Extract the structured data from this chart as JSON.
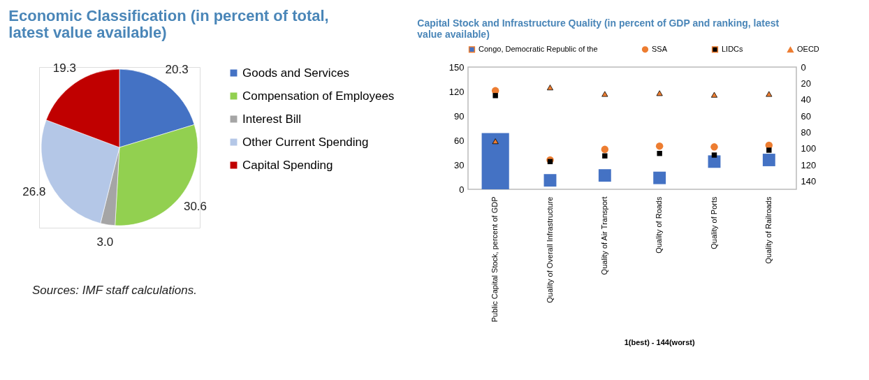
{
  "chart_data": [
    {
      "type": "pie",
      "title": "Economic Classification (in percent of total, latest value available)",
      "categories": [
        "Goods and Services",
        "Compensation of Employees",
        "Interest Bill",
        "Other Current Spending",
        "Capital Spending"
      ],
      "values": [
        20.3,
        30.6,
        3.0,
        26.8,
        19.3
      ],
      "value_labels": [
        "20.3",
        "30.6",
        "3.0",
        "26.8",
        "19.3"
      ],
      "colors": [
        "#4472c4",
        "#92d050",
        "#a5a5a5",
        "#b4c7e7",
        "#c00000"
      ],
      "legend": "right",
      "annotations": [
        "Sources: IMF staff calculations."
      ]
    },
    {
      "type": "bar",
      "title": "Capital Stock and Infrastructure Quality (in percent of GDP and ranking, latest value available)",
      "categories": [
        "Public Capital Stock, percent of GDP",
        "Quality of Overall Infrastructure",
        "Quality of Air Transport",
        "Quality of Roads",
        "Quality of Ports",
        "Quality of Railroads"
      ],
      "series": [
        {
          "name": "Congo, Democratic Republic of the",
          "type": "bar",
          "color": "#4472c4",
          "values": [
            69,
            null,
            null,
            null,
            null,
            null
          ]
        },
        {
          "name": "SSA",
          "type": "scatter",
          "marker": "circle",
          "color": "#ed7d31",
          "values": [
            121,
            null,
            null,
            null,
            null,
            null
          ]
        },
        {
          "name": "LIDCs",
          "type": "scatter",
          "marker": "square",
          "color": "#000000",
          "values": [
            115,
            null,
            null,
            null,
            null,
            null
          ]
        },
        {
          "name": "OECD",
          "type": "scatter",
          "marker": "triangle",
          "color": "#ed7d31",
          "values": [
            59,
            null,
            null,
            null,
            null,
            null
          ]
        },
        {
          "type": "scatter",
          "marker": "square",
          "axis": "y2",
          "color": "#4472c4",
          "values": [
            null,
            139,
            133,
            136,
            116,
            114
          ]
        },
        {
          "type": "scatter",
          "marker": "circle",
          "axis": "y2",
          "color": "#ed7d31",
          "values": [
            null,
            114,
            101,
            97,
            98,
            96
          ]
        },
        {
          "type": "scatter",
          "marker": "square",
          "axis": "y2",
          "color": "#000000",
          "values": [
            null,
            116,
            109,
            106,
            108,
            102
          ]
        },
        {
          "type": "scatter",
          "marker": "triangle",
          "axis": "y2",
          "color": "#ed7d31",
          "values": [
            null,
            25,
            33,
            32,
            34,
            33
          ]
        }
      ],
      "ylim": [
        0,
        150
      ],
      "yticks": [
        0,
        30,
        60,
        90,
        120,
        150
      ],
      "y2lim": [
        150,
        0
      ],
      "y2ticks": [
        0,
        20,
        40,
        60,
        80,
        100,
        120,
        140
      ],
      "grid": false,
      "legend": "top",
      "annotations": [
        "1(best) - 144(worst)"
      ]
    }
  ]
}
